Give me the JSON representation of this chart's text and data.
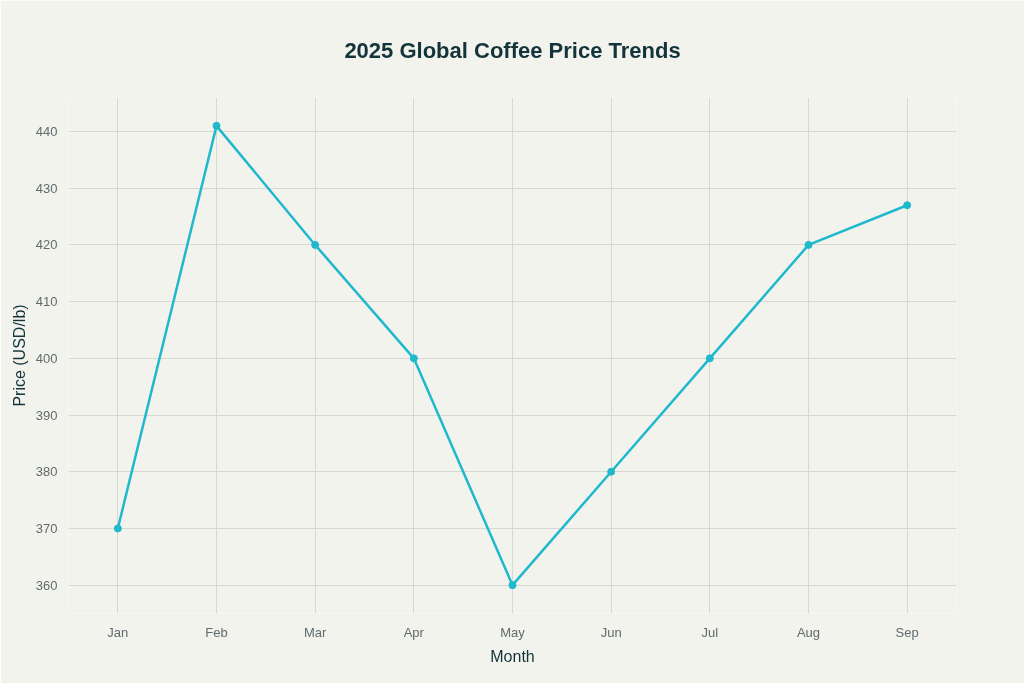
{
  "chart_data": {
    "type": "line",
    "title": "2025 Global Coffee Price Trends",
    "xlabel": "Month",
    "ylabel": "Price (USD/lb)",
    "categories": [
      "Jan",
      "Feb",
      "Mar",
      "Apr",
      "May",
      "Jun",
      "Jul",
      "Aug",
      "Sep"
    ],
    "series": [
      {
        "color": "#1fb8cd",
        "values": [
          370,
          441,
          420,
          400,
          360,
          380,
          400,
          420,
          427
        ]
      }
    ],
    "ylim": [
      355,
      446
    ],
    "yticks": [
      360,
      370,
      380,
      390,
      400,
      410,
      420,
      430,
      440
    ],
    "grid": true,
    "marker": "circle",
    "line_style": "solid"
  }
}
